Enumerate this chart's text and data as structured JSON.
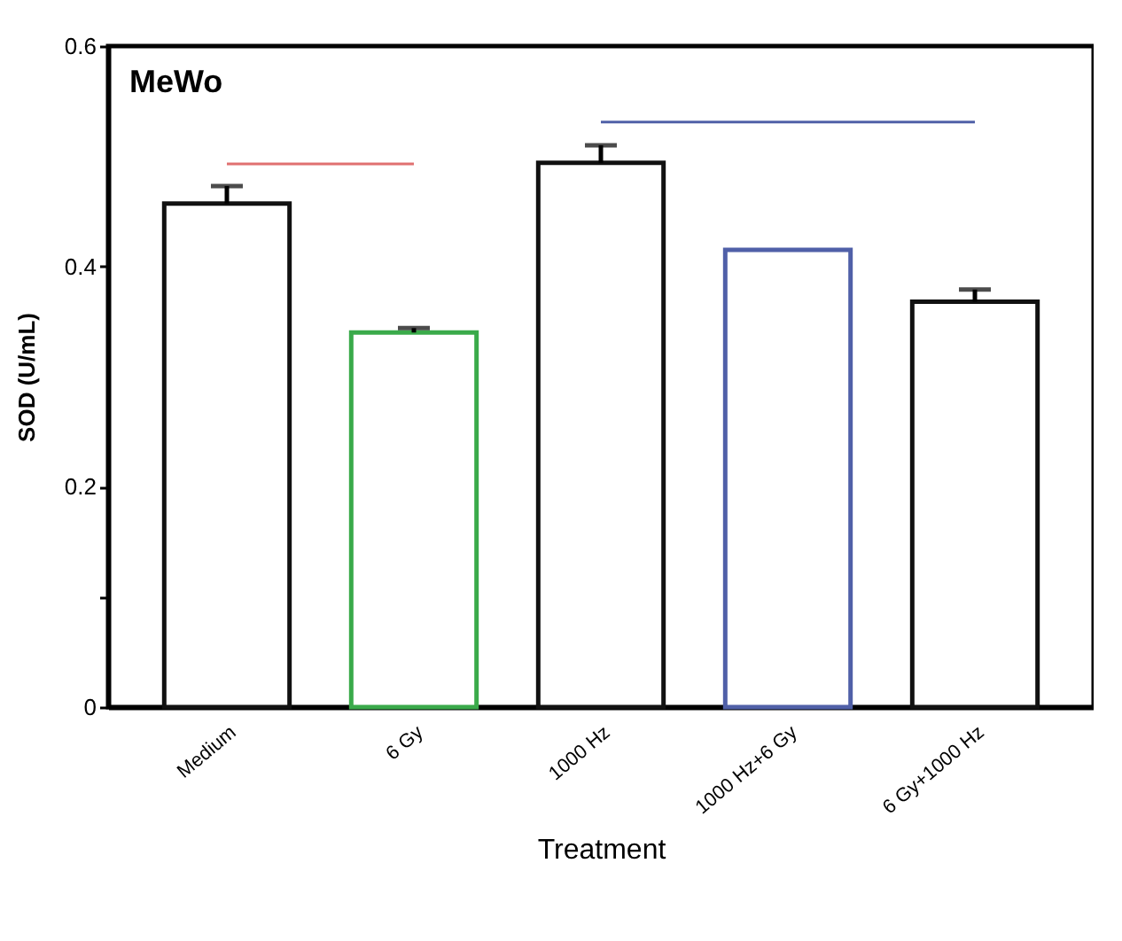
{
  "chart_data": {
    "type": "bar",
    "title": "MeWo",
    "xlabel": "Treatment",
    "ylabel": "SOD (U/mL)",
    "categories": [
      "Medium",
      "6 Gy",
      "1000 Hz",
      "1000 Hz+6 Gy",
      "6 Gy+1000 Hz"
    ],
    "series": [
      {
        "values": [
          0.457,
          0.34,
          0.494,
          0.415,
          0.368
        ],
        "colors": [
          "#111111",
          "#3aaa4a",
          "#111111",
          "#5060a8",
          "#111111"
        ],
        "errors": [
          0.016,
          0.004,
          0.016,
          null,
          0.011
        ]
      },
      {
        "type": "line",
        "x": [
          "Medium",
          "6 Gy"
        ],
        "values": [
          0.493,
          0.493
        ],
        "color": "#e07070"
      },
      {
        "type": "line",
        "x": [
          "1000 Hz",
          "6 Gy+1000 Hz"
        ],
        "values": [
          0.531,
          0.531
        ],
        "color": "#5060a8"
      }
    ],
    "ylim": [
      0,
      0.6
    ],
    "yticks": [
      0,
      {
        "value": 0.1,
        "label": null
      },
      0.2,
      0.4,
      0.6
    ],
    "grid": false
  }
}
